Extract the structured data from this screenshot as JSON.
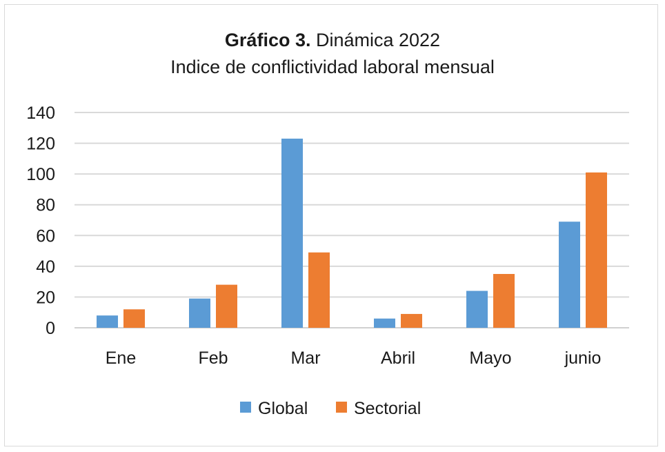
{
  "chart_data": {
    "type": "bar",
    "title_bold": "Gráfico 3.",
    "title_rest": " Dinámica 2022",
    "subtitle": "Indice de conflictividad laboral mensual",
    "xlabel": "",
    "ylabel": "",
    "categories": [
      "Ene",
      "Feb",
      "Mar",
      "Abril",
      "Mayo",
      "junio"
    ],
    "series": [
      {
        "name": "Global",
        "color": "#5b9bd5",
        "values": [
          8,
          19,
          123,
          6,
          24,
          69
        ]
      },
      {
        "name": "Sectorial",
        "color": "#ed7d31",
        "values": [
          12,
          28,
          49,
          9,
          35,
          101
        ]
      }
    ],
    "ylim": [
      0,
      140
    ],
    "yticks": [
      0,
      20,
      40,
      60,
      80,
      100,
      120,
      140
    ],
    "grid": true,
    "legend": "bottom"
  }
}
